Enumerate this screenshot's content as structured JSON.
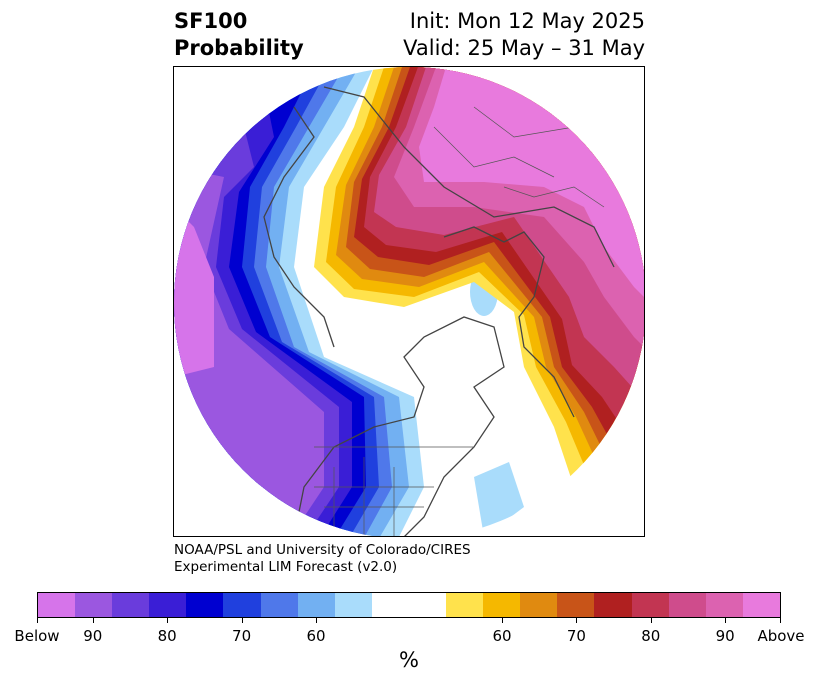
{
  "title": {
    "left_line1": "SF100",
    "left_line2": "Probability",
    "right_line1": "Init: Mon 12 May 2025",
    "right_line2": "Valid: 25 May – 31 May"
  },
  "credit": {
    "line1": "NOAA/PSL and University of Colorado/CIRES",
    "line2": "Experimental LIM Forecast (v2.0)"
  },
  "colorbar": {
    "unit": "%",
    "below_colors": [
      "#d674ea",
      "#9b57e0",
      "#6a3cdc",
      "#3a1ed6",
      "#0000d0",
      "#2040de",
      "#4f78ea",
      "#72b0f2",
      "#a9dcfb"
    ],
    "middle_color": "#ffffff",
    "above_colors": [
      "#ffe24c",
      "#f5b800",
      "#e08a10",
      "#c85418",
      "#b02020",
      "#c23552",
      "#cf4c8c",
      "#dc62b0",
      "#e87add"
    ],
    "tick_labels": [
      "Below",
      "90",
      "80",
      "70",
      "60",
      "60",
      "70",
      "80",
      "90",
      "Above"
    ]
  }
}
